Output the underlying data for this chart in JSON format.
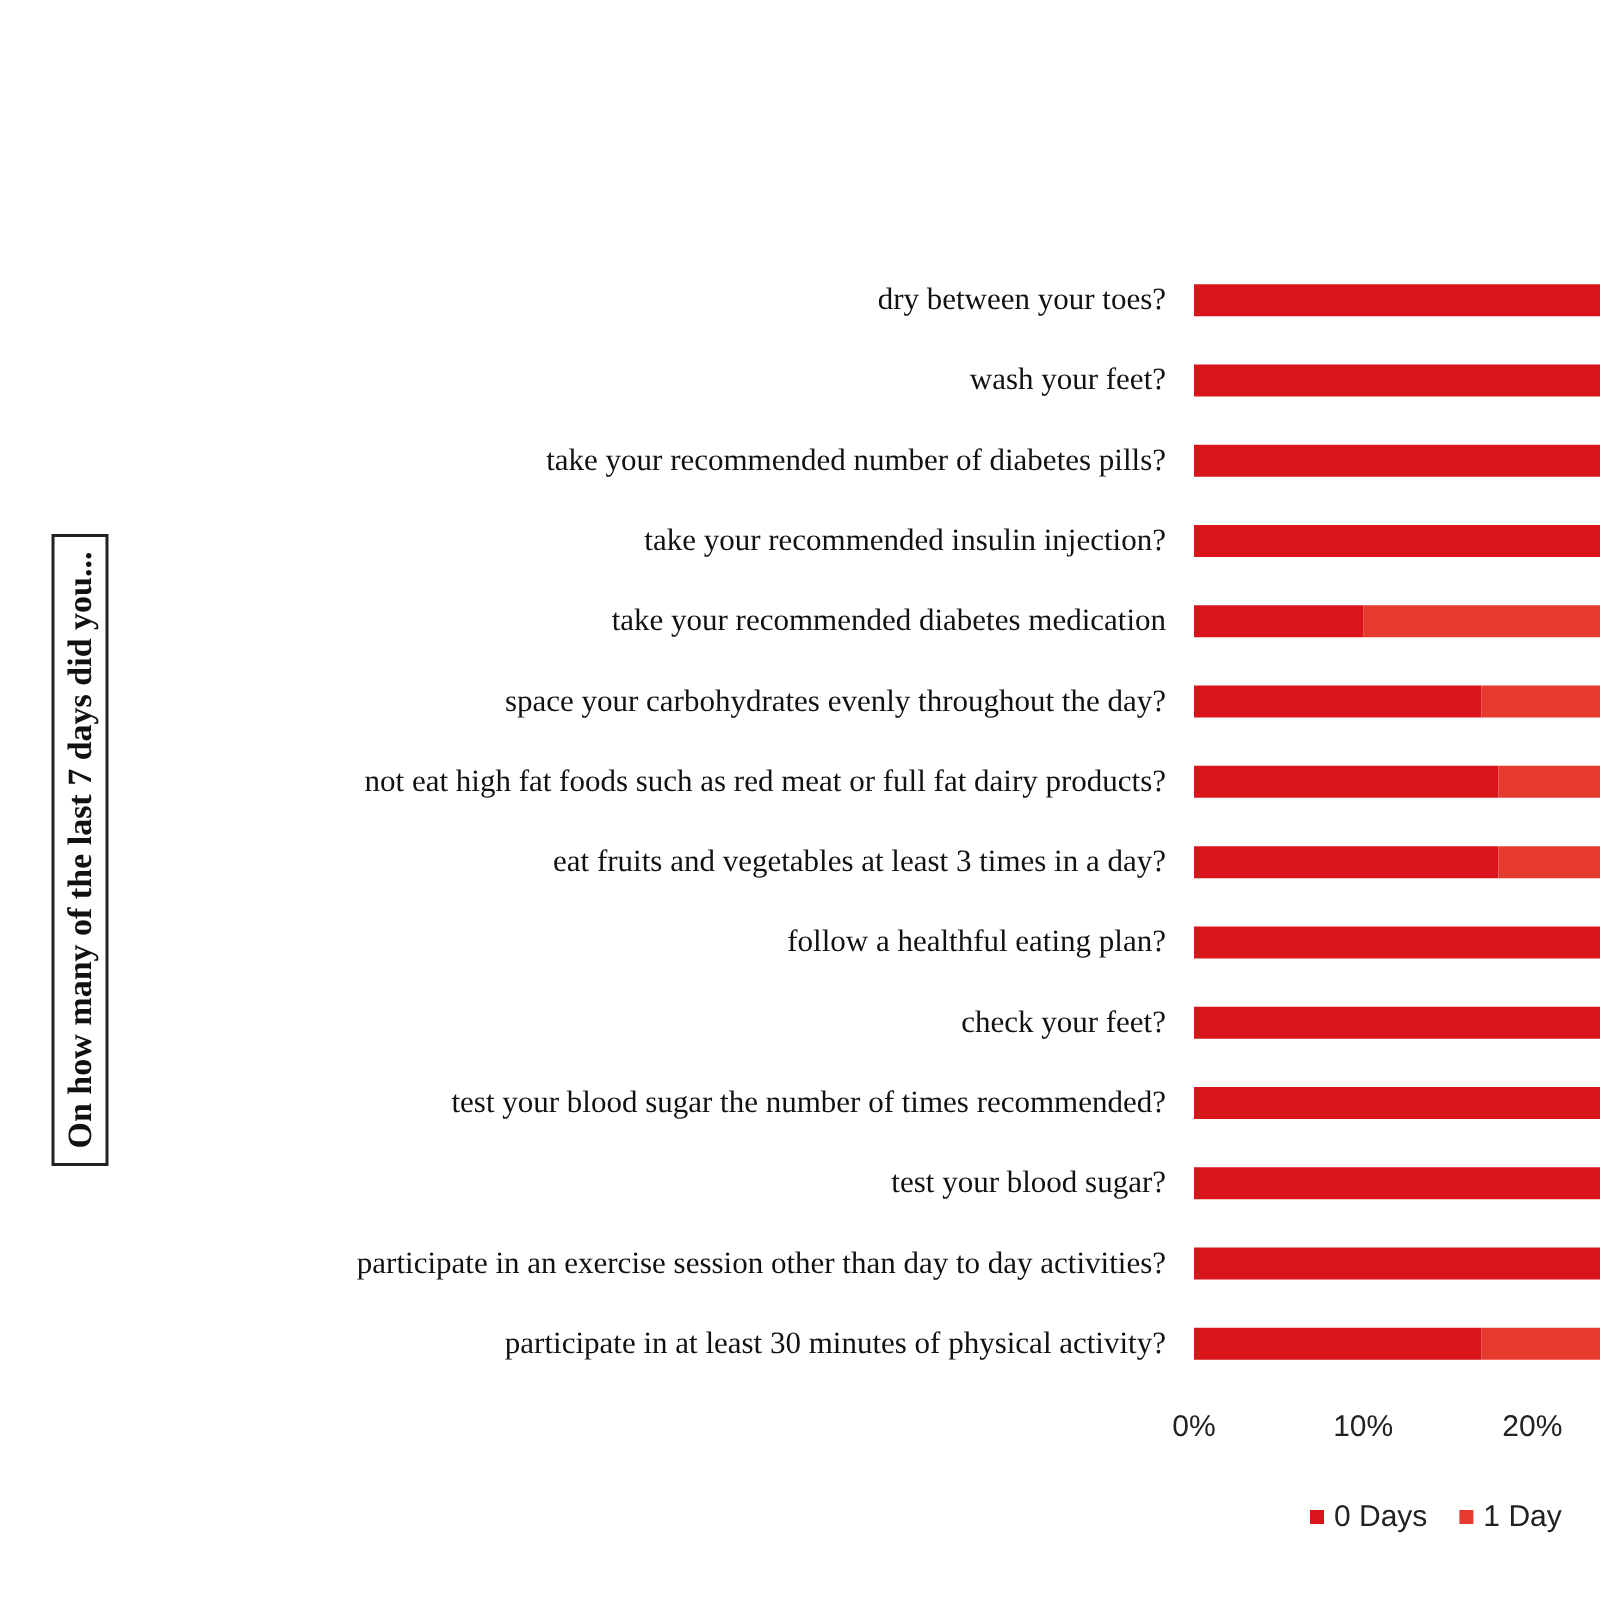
{
  "chart_data": {
    "type": "bar",
    "orientation": "horizontal",
    "stacked": true,
    "annotations": [
      "On how many of the last 7 days did you..."
    ],
    "categories": [
      "dry between your toes?",
      "wash your feet?",
      "take your recommended number of diabetes pills?",
      "take your recommended insulin injection?",
      "take your recommended diabetes medication",
      "space your carbohydrates evenly throughout the day?",
      "not eat high fat foods such as red meat or full fat dairy products?",
      "eat fruits and vegetables at least 3 times in a day?",
      "follow a healthful eating plan?",
      "check your feet?",
      "test your blood sugar the number of times recommended?",
      "test your blood sugar?",
      "participate in an exercise session other than day to day activities?",
      "participate in at least 30 minutes of physical activity?"
    ],
    "series": [
      {
        "name": "0 Days",
        "color": "#d9141b",
        "values": [
          24,
          24,
          24,
          24,
          10,
          17,
          18,
          18,
          24,
          24,
          24,
          24,
          24,
          17
        ]
      },
      {
        "name": "1 Day",
        "color": "#e63a2e",
        "values": [
          null,
          null,
          null,
          null,
          14,
          7,
          6,
          6,
          null,
          null,
          null,
          null,
          null,
          7
        ]
      }
    ],
    "xlim": [
      0,
      24
    ],
    "xticks": [
      {
        "value": 0,
        "label": "0%"
      },
      {
        "value": 10,
        "label": "10%"
      },
      {
        "value": 20,
        "label": "20%"
      }
    ],
    "grid": false,
    "legend": "bottom"
  }
}
